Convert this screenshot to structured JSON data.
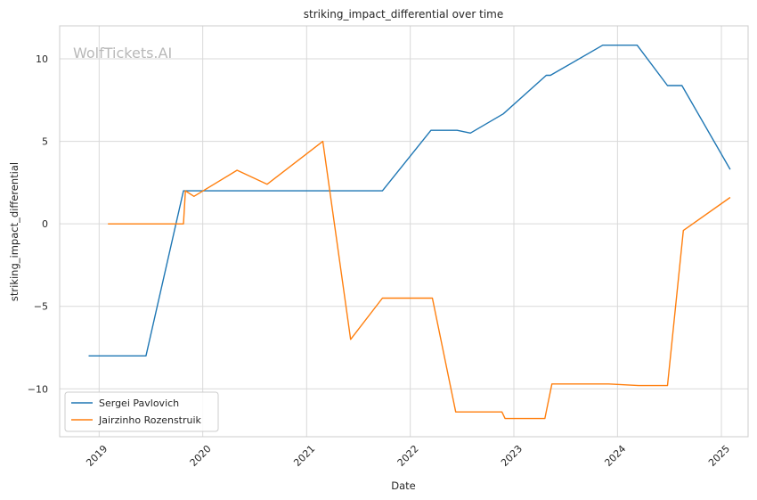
{
  "chart_data": {
    "type": "line",
    "title": "striking_impact_differential over time",
    "xlabel": "Date",
    "ylabel": "striking_impact_differential",
    "watermark": "WolfTickets.AI",
    "xlim": [
      "2018-08-15",
      "2025-04-05"
    ],
    "ylim": [
      -12.9,
      12.0
    ],
    "x_ticks": [
      "2019-01-01",
      "2020-01-01",
      "2021-01-01",
      "2022-01-01",
      "2023-01-01",
      "2024-01-01",
      "2025-01-01"
    ],
    "x_tick_labels": [
      "2019",
      "2020",
      "2021",
      "2022",
      "2023",
      "2024",
      "2025"
    ],
    "y_ticks": [
      -10,
      -5,
      0,
      5,
      10
    ],
    "y_tick_labels": [
      "−10",
      "−5",
      "0",
      "5",
      "10"
    ],
    "grid": true,
    "legend_position": "bottom-left",
    "series": [
      {
        "name": "Sergei Pavlovich",
        "color": "#1f77b4",
        "x": [
          "2018-11-25",
          "2019-06-15",
          "2019-10-25",
          "2021-09-25",
          "2022-03-15",
          "2022-06-15",
          "2022-08-01",
          "2022-11-25",
          "2023-04-25",
          "2023-05-10",
          "2023-11-10",
          "2024-03-10",
          "2024-06-25",
          "2024-08-15",
          "2025-02-01"
        ],
        "y": [
          -8,
          -8,
          2,
          2,
          5.67,
          5.67,
          5.5,
          6.67,
          9.0,
          9.0,
          10.83,
          10.83,
          8.38,
          8.38,
          3.3
        ]
      },
      {
        "name": "Jairzinho Rozenstruik",
        "color": "#ff7f0e",
        "x": [
          "2019-02-01",
          "2019-10-25",
          "2019-11-01",
          "2019-12-01",
          "2020-05-01",
          "2020-08-15",
          "2021-02-27",
          "2021-06-05",
          "2021-09-25",
          "2022-03-20",
          "2022-06-10",
          "2022-11-20",
          "2022-12-01",
          "2023-04-20",
          "2023-05-15",
          "2023-12-01",
          "2024-03-15",
          "2024-06-25",
          "2024-08-20",
          "2025-02-01"
        ],
        "y": [
          0,
          0,
          2,
          1.67,
          3.25,
          2.4,
          5.0,
          -7.0,
          -4.5,
          -4.5,
          -11.4,
          -11.4,
          -11.8,
          -11.8,
          -9.7,
          -9.7,
          -9.8,
          -9.8,
          -0.4,
          1.6
        ]
      }
    ]
  }
}
